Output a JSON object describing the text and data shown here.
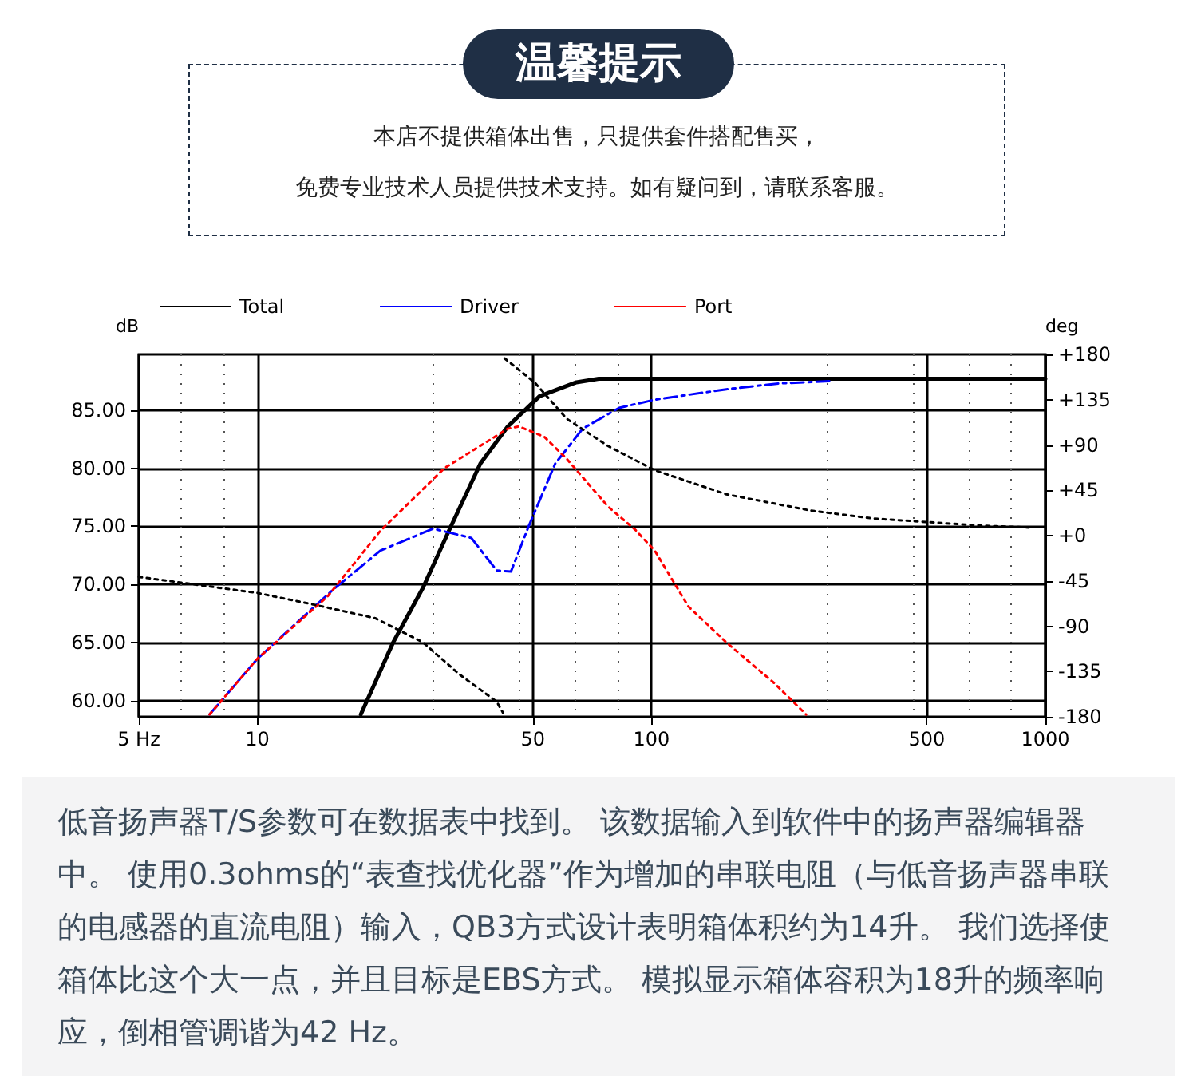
{
  "chart_data": {
    "type": "line",
    "title": "温馨提示",
    "subtitle": "本店不提供箱体出售，只提供套件搭配售买，",
    "annotations": [
      "免费专业技术人员提供技术支持。如有疑问到，请联系客服。",
      "低音扬声器T/S参数可在数据表中找到。 该数据输入到软件中的扬声器编辑器中。 使用0.3ohms的“表查找优化器”作为增加的串联电阻（与低音扬声器串联的电感器的直流电阻）输入，QB3方式设计表明箱体积约为14升。 我们选择使箱体比这个大一点，并且目标是EBS方式。 模拟显示箱体容积为18升的频率响应，倒相管调谐为42 Hz。"
    ],
    "ylabel": "dB",
    "y2label": "deg",
    "log": "x",
    "grid": true,
    "legend": "top left",
    "xlim": [
      5,
      1000
    ],
    "xticks": [
      {
        "value": 5,
        "label": "5 Hz"
      },
      10,
      50,
      100,
      500,
      1000
    ],
    "ylim": [
      58.6,
      89.8
    ],
    "yticks": [
      {
        "value": 60,
        "label": "60.00"
      },
      {
        "value": 65,
        "label": "65.00"
      },
      {
        "value": 70,
        "label": "70.00"
      },
      {
        "value": 75,
        "label": "75.00"
      },
      {
        "value": 80,
        "label": "80.00"
      },
      {
        "value": 85,
        "label": "85.00"
      }
    ],
    "y2lim": [
      -180,
      180
    ],
    "y2ticks": [
      -180,
      -135,
      -90,
      -45,
      {
        "value": 0,
        "label": "+0"
      },
      {
        "value": 45,
        "label": "+45"
      },
      {
        "value": 90,
        "label": "+90"
      },
      {
        "value": 135,
        "label": "+135"
      },
      {
        "value": 180,
        "label": "+180"
      }
    ],
    "series": [
      {
        "name": "Total",
        "color": "#000000",
        "line_style": "solid",
        "x": [
          18.3,
          22.1,
          26.3,
          30.6,
          36.8,
          43.2,
          52,
          64.5,
          73.5,
          100,
          1000
        ],
        "values": [
          58.8,
          65,
          69.7,
          74.6,
          80.4,
          83.6,
          86.2,
          87.4,
          87.7,
          87.7,
          87.7
        ]
      },
      {
        "name": "Driver",
        "color": "#0000ff",
        "line_style": "dashed",
        "x": [
          7.56,
          10,
          15.5,
          20.5,
          27.9,
          34.9,
          40.5,
          44,
          48.8,
          57,
          66.9,
          82.8,
          101.9,
          155,
          210,
          285
        ],
        "values": [
          58.8,
          63.6,
          69.5,
          72.9,
          74.8,
          74,
          71.2,
          71.1,
          75,
          80.4,
          83.4,
          85.2,
          85.9,
          86.8,
          87.3,
          87.5
        ]
      },
      {
        "name": "Port",
        "color": "#ff0000",
        "line_style": "dotted",
        "x": [
          7.56,
          10,
          15.1,
          20.5,
          29.8,
          43.2,
          46.1,
          53.5,
          61,
          77.6,
          91,
          102,
          124.1,
          155,
          205,
          247
        ],
        "values": [
          58.8,
          63.6,
          69,
          74.6,
          80,
          83.4,
          83.6,
          82.7,
          80.8,
          76.7,
          74.7,
          72.9,
          68.1,
          65,
          61.5,
          58.8
        ]
      },
      {
        "color": "#000000",
        "line_style": "dotted",
        "axis": "y2",
        "x": [
          5,
          7.07,
          10,
          13.7,
          19.9,
          26.3,
          32.6,
          40.5,
          42
        ],
        "values": [
          -41,
          -49,
          -57,
          -68,
          -82,
          -106,
          -138,
          -165,
          -176
        ]
      },
      {
        "color": "#000000",
        "line_style": "dotted",
        "axis": "y2",
        "x": [
          42.4,
          50.6,
          61,
          77.6,
          101.9,
          155,
          253,
          365,
          681,
          908
        ],
        "values": [
          176,
          152,
          116,
          89,
          65,
          41,
          25,
          17,
          10,
          8
        ]
      }
    ]
  }
}
